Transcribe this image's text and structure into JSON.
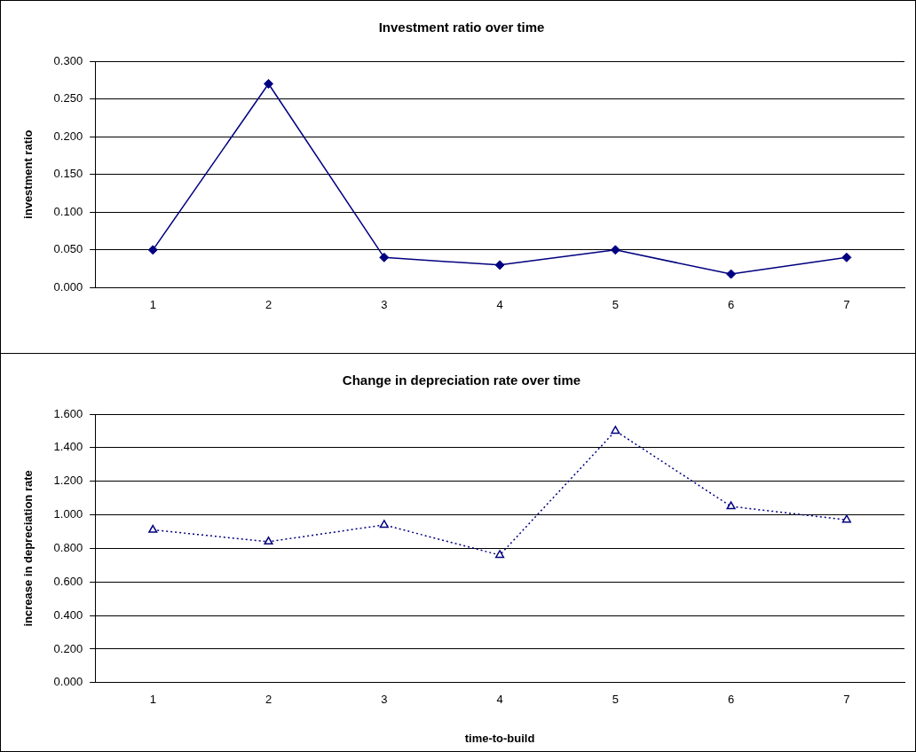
{
  "chart_data": [
    {
      "type": "line",
      "title": "Investment ratio over time",
      "ylabel": "investment ratio",
      "categories": [
        "1",
        "2",
        "3",
        "4",
        "5",
        "6",
        "7"
      ],
      "series": [
        {
          "color": "#000080",
          "values": [
            0.05,
            0.27,
            0.04,
            0.03,
            0.05,
            0.018,
            0.04
          ]
        }
      ],
      "ylim": [
        0,
        0.3
      ],
      "yticks": [
        {
          "value": 0,
          "label": "0.000"
        },
        {
          "value": 0.05,
          "label": "0.050"
        },
        {
          "value": 0.1,
          "label": "0.100"
        },
        {
          "value": 0.15,
          "label": "0.150"
        },
        {
          "value": 0.2,
          "label": "0.200"
        },
        {
          "value": 0.25,
          "label": "0.250"
        },
        {
          "value": 0.3,
          "label": "0.300"
        }
      ],
      "grid": "y",
      "marker": "diamond",
      "line_style": "solid",
      "legend": false
    },
    {
      "type": "line",
      "title": "Change in depreciation rate over time",
      "xlabel": "time-to-build",
      "ylabel": "increase in depreciation rate",
      "categories": [
        "1",
        "2",
        "3",
        "4",
        "5",
        "6",
        "7"
      ],
      "series": [
        {
          "color": "#000080",
          "values": [
            0.91,
            0.84,
            0.94,
            0.76,
            1.5,
            1.05,
            0.97
          ]
        }
      ],
      "ylim": [
        0,
        1.6
      ],
      "yticks": [
        {
          "value": 0,
          "label": "0.000"
        },
        {
          "value": 0.2,
          "label": "0.200"
        },
        {
          "value": 0.4,
          "label": "0.400"
        },
        {
          "value": 0.6,
          "label": "0.600"
        },
        {
          "value": 0.8,
          "label": "0.800"
        },
        {
          "value": 1.0,
          "label": "1.000"
        },
        {
          "value": 1.2,
          "label": "1.200"
        },
        {
          "value": 1.4,
          "label": "1.400"
        },
        {
          "value": 1.6,
          "label": "1.600"
        }
      ],
      "grid": "y",
      "marker": "triangle",
      "line_style": "dotted",
      "legend": false
    }
  ]
}
